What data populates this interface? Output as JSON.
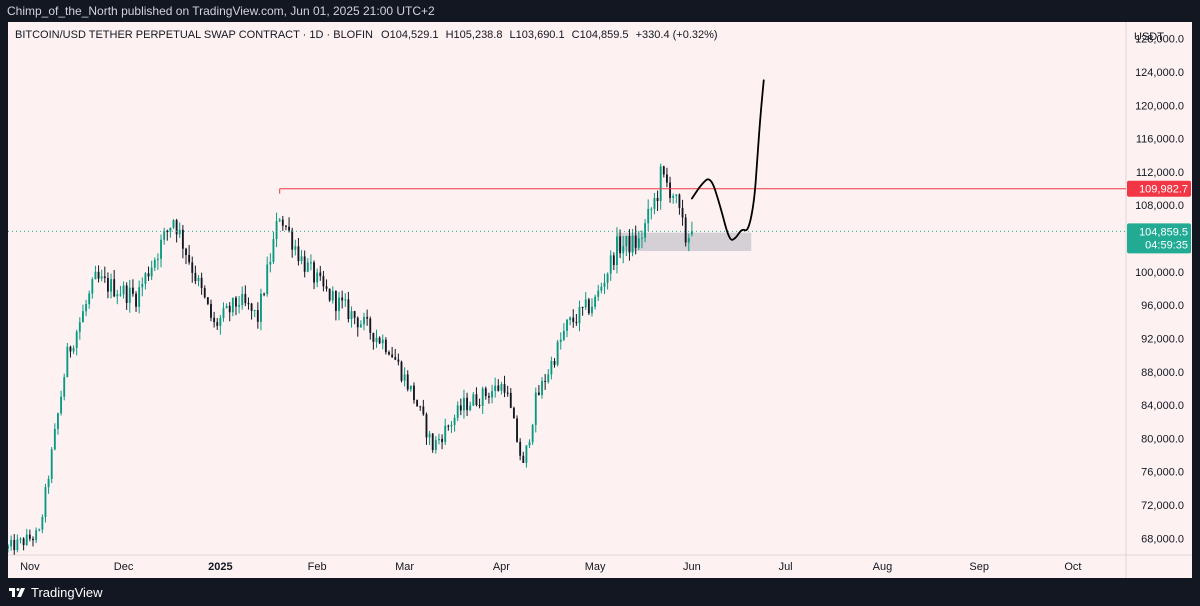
{
  "header": {
    "publisher_line": "Chimp_of_the_North published on TradingView.com, Jun 01, 2025 21:00 UTC+2"
  },
  "footer": {
    "brand": "TradingView",
    "logo_icon": "tradingview-logo-icon"
  },
  "colors": {
    "background": "#fdf2f1",
    "up": "#089981",
    "down": "#131722",
    "resistance": "#f23645",
    "current_price": "#22ab94",
    "zone": "#b2b5be",
    "drawing": "#000000"
  },
  "chart_data": {
    "type": "candlestick",
    "symbol": "BITCOIN/USD TETHER PERPETUAL SWAP CONTRACT",
    "interval": "1D",
    "exchange": "BLOFIN",
    "legend": {
      "symbol": "BITCOIN/USD TETHER PERPETUAL SWAP CONTRACT · 1D · BLOFIN",
      "open": "O104,529.1",
      "high": "H105,238.8",
      "low": "L103,690.1",
      "close": "C104,859.5",
      "change": "+330.4 (+0.32%)"
    },
    "currency": "USDT",
    "y_axis": {
      "min": 66000,
      "max": 130000,
      "ticks": [
        "68,000.0",
        "72,000.0",
        "76,000.0",
        "80,000.0",
        "84,000.0",
        "88,000.0",
        "92,000.0",
        "96,000.0",
        "100,000.0",
        "104,000.0",
        "108,000.0",
        "112,000.0",
        "116,000.0",
        "120,000.0",
        "124,000.0",
        "128,000.0"
      ],
      "tick_values": [
        68000,
        72000,
        76000,
        80000,
        84000,
        88000,
        92000,
        96000,
        100000,
        104000,
        108000,
        112000,
        116000,
        120000,
        124000,
        128000
      ]
    },
    "x_axis": {
      "start": "2024-10-25",
      "end": "2025-10-18",
      "labels": [
        {
          "text": "Nov",
          "date": "2024-11-01",
          "bold": false
        },
        {
          "text": "Dec",
          "date": "2024-12-01",
          "bold": false
        },
        {
          "text": "2025",
          "date": "2025-01-01",
          "bold": true
        },
        {
          "text": "Feb",
          "date": "2025-02-01",
          "bold": false
        },
        {
          "text": "Mar",
          "date": "2025-03-01",
          "bold": false
        },
        {
          "text": "Apr",
          "date": "2025-04-01",
          "bold": false
        },
        {
          "text": "May",
          "date": "2025-05-01",
          "bold": false
        },
        {
          "text": "Jun",
          "date": "2025-06-01",
          "bold": false
        },
        {
          "text": "Jul",
          "date": "2025-07-01",
          "bold": false
        },
        {
          "text": "Aug",
          "date": "2025-08-01",
          "bold": false
        },
        {
          "text": "Sep",
          "date": "2025-09-01",
          "bold": false
        },
        {
          "text": "Oct",
          "date": "2025-10-01",
          "bold": false
        }
      ]
    },
    "key_points": [
      {
        "date": "2024-10-25",
        "close": 66800
      },
      {
        "date": "2024-11-04",
        "close": 68500
      },
      {
        "date": "2024-11-13",
        "close": 90000
      },
      {
        "date": "2024-11-22",
        "close": 99000
      },
      {
        "date": "2024-12-05",
        "close": 97000
      },
      {
        "date": "2024-12-17",
        "close": 106500
      },
      {
        "date": "2024-12-30",
        "close": 93500
      },
      {
        "date": "2025-01-07",
        "close": 96500
      },
      {
        "date": "2025-01-13",
        "close": 94500
      },
      {
        "date": "2025-01-20",
        "close": 107000
      },
      {
        "date": "2025-01-27",
        "close": 101500
      },
      {
        "date": "2025-02-03",
        "close": 97800
      },
      {
        "date": "2025-02-24",
        "close": 91000
      },
      {
        "date": "2025-03-04",
        "close": 85000
      },
      {
        "date": "2025-03-10",
        "close": 79000
      },
      {
        "date": "2025-03-20",
        "close": 84000
      },
      {
        "date": "2025-04-02",
        "close": 86500
      },
      {
        "date": "2025-04-08",
        "close": 76500
      },
      {
        "date": "2025-04-12",
        "close": 84500
      },
      {
        "date": "2025-04-22",
        "close": 93500
      },
      {
        "date": "2025-05-01",
        "close": 96500
      },
      {
        "date": "2025-05-08",
        "close": 103000
      },
      {
        "date": "2025-05-15",
        "close": 103500
      },
      {
        "date": "2025-05-21",
        "close": 109500
      },
      {
        "date": "2025-05-22",
        "close": 111500
      },
      {
        "date": "2025-05-26",
        "close": 109500
      },
      {
        "date": "2025-05-30",
        "close": 104000
      },
      {
        "date": "2025-06-01",
        "close": 104859.5
      }
    ],
    "resistance_line": {
      "price": 109982.7,
      "label": "109,982.7",
      "start_date": "2025-01-20"
    },
    "current_price": {
      "price": 104859.5,
      "label": "104,859.5",
      "countdown": "04:59:35"
    },
    "support_zone": {
      "start_date": "2025-05-08",
      "end_date": "2025-06-20",
      "low": 102500,
      "high": 104700
    },
    "projection_path": [
      {
        "date": "2025-06-01",
        "value": 108800
      },
      {
        "date": "2025-06-04",
        "value": 110500
      },
      {
        "date": "2025-06-07",
        "value": 111500
      },
      {
        "date": "2025-06-10",
        "value": 108000
      },
      {
        "date": "2025-06-13",
        "value": 103700
      },
      {
        "date": "2025-06-15",
        "value": 104000
      },
      {
        "date": "2025-06-17",
        "value": 105200
      },
      {
        "date": "2025-06-19",
        "value": 104800
      },
      {
        "date": "2025-06-21",
        "value": 108500
      },
      {
        "date": "2025-06-22",
        "value": 114000
      },
      {
        "date": "2025-06-23",
        "value": 119000
      },
      {
        "date": "2025-06-24",
        "value": 123000
      }
    ]
  }
}
